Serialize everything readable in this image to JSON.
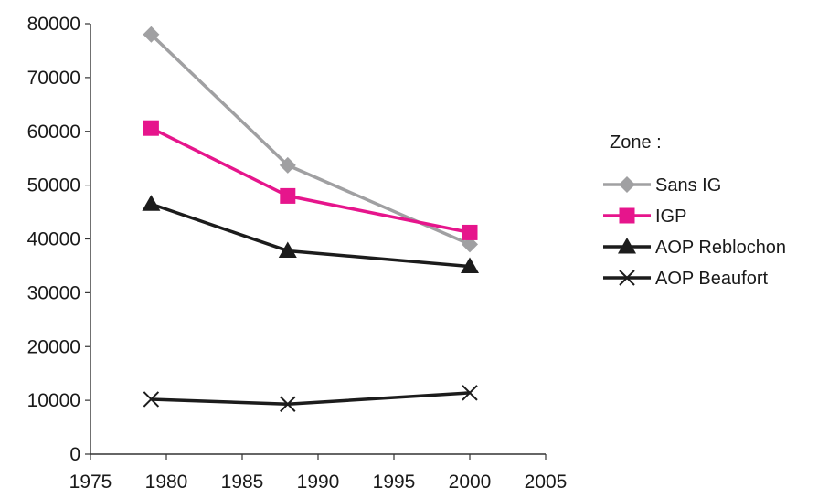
{
  "chart_data": {
    "type": "line",
    "title": "",
    "xlabel": "",
    "ylabel": "",
    "xlim": [
      1975,
      2005
    ],
    "ylim": [
      0,
      80000
    ],
    "x_ticks": [
      1975,
      1980,
      1985,
      1990,
      1995,
      2000,
      2005
    ],
    "y_ticks": [
      0,
      10000,
      20000,
      30000,
      40000,
      50000,
      60000,
      70000,
      80000
    ],
    "x_tick_labels": [
      "1975",
      "1980",
      "1985",
      "1990",
      "1995",
      "2000",
      "2005"
    ],
    "y_tick_labels": [
      "0",
      "10000",
      "20000",
      "30000",
      "40000",
      "50000",
      "60000",
      "70000",
      "80000"
    ],
    "grid": false,
    "legend_title": "Zone :",
    "legend_position": "right",
    "x": [
      1979,
      1988,
      2000
    ],
    "series": [
      {
        "name": "Sans IG",
        "values": [
          78000,
          53700,
          39000
        ],
        "color": "#a0a0a2",
        "marker": "diamond"
      },
      {
        "name": "IGP",
        "values": [
          60600,
          48000,
          41200
        ],
        "color": "#e6158c",
        "marker": "square"
      },
      {
        "name": "AOP Reblochon",
        "values": [
          46500,
          37800,
          34900
        ],
        "color": "#1c1c1c",
        "marker": "triangle"
      },
      {
        "name": "AOP Beaufort",
        "values": [
          10200,
          9300,
          11400
        ],
        "color": "#1c1c1c",
        "marker": "x"
      }
    ]
  }
}
